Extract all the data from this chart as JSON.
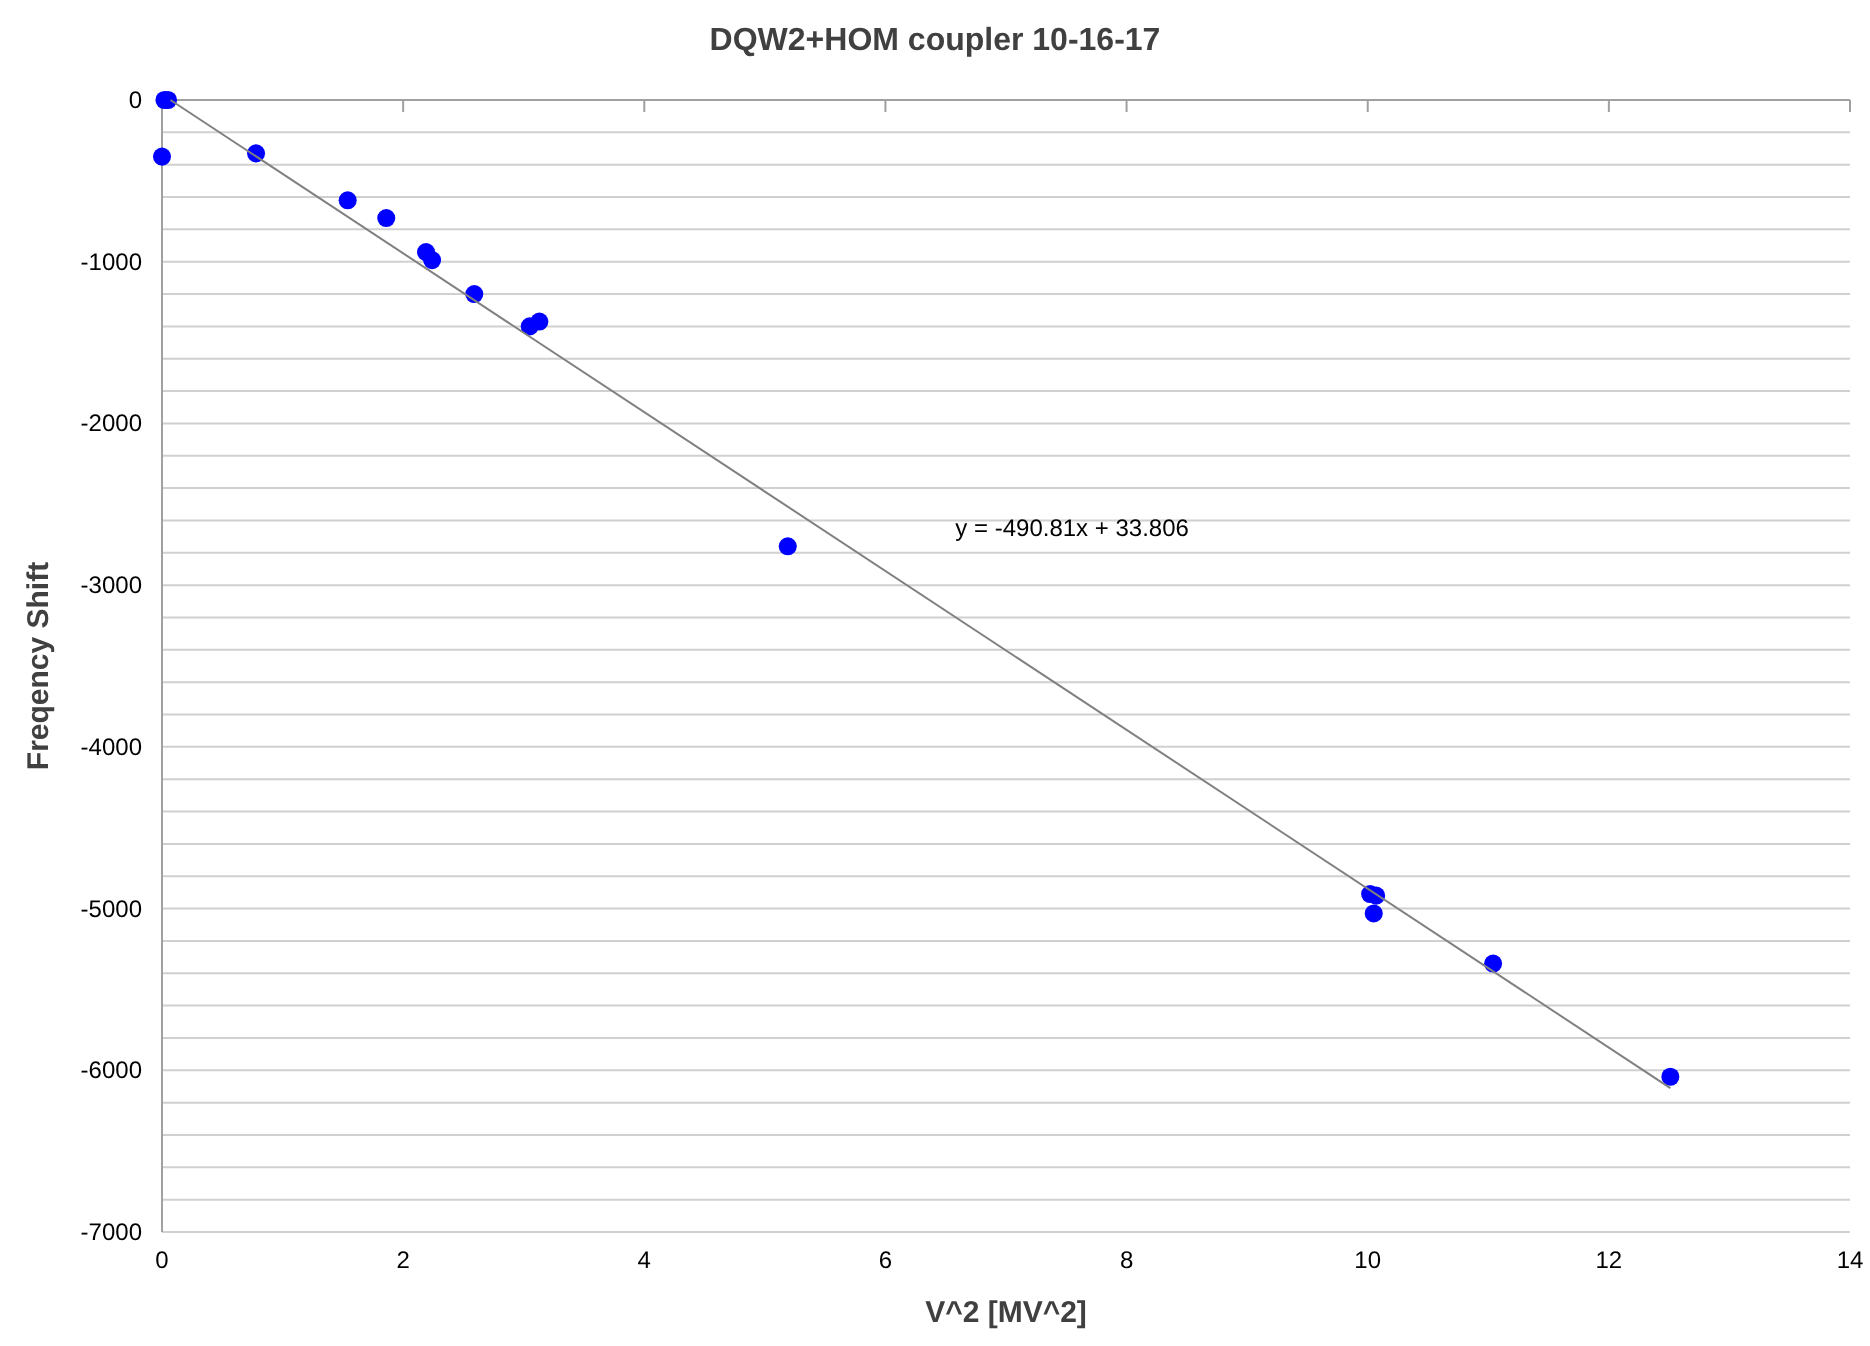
{
  "chart_data": {
    "type": "scatter",
    "title": "DQW2+HOM coupler 10-16-17",
    "xlabel": "V^2 [MV^2]",
    "ylabel": "Freqency Shift",
    "xlim": [
      0,
      14
    ],
    "xticks": [
      0,
      2,
      4,
      6,
      8,
      10,
      12,
      14
    ],
    "ylim": [
      -7000,
      0
    ],
    "yticks": [
      -7000,
      {
        "value": -6800,
        "label": null
      },
      {
        "value": -6600,
        "label": null
      },
      {
        "value": -6400,
        "label": null
      },
      {
        "value": -6200,
        "label": null
      },
      -6000,
      {
        "value": -5800,
        "label": null
      },
      {
        "value": -5600,
        "label": null
      },
      {
        "value": -5400,
        "label": null
      },
      {
        "value": -5200,
        "label": null
      },
      -5000,
      {
        "value": -4800,
        "label": null
      },
      {
        "value": -4600,
        "label": null
      },
      {
        "value": -4400,
        "label": null
      },
      {
        "value": -4200,
        "label": null
      },
      -4000,
      {
        "value": -3800,
        "label": null
      },
      {
        "value": -3600,
        "label": null
      },
      {
        "value": -3400,
        "label": null
      },
      {
        "value": -3200,
        "label": null
      },
      -3000,
      {
        "value": -2800,
        "label": null
      },
      {
        "value": -2600,
        "label": null
      },
      {
        "value": -2400,
        "label": null
      },
      {
        "value": -2200,
        "label": null
      },
      -2000,
      {
        "value": -1800,
        "label": null
      },
      {
        "value": -1600,
        "label": null
      },
      {
        "value": -1400,
        "label": null
      },
      {
        "value": -1200,
        "label": null
      },
      -1000,
      {
        "value": -800,
        "label": null
      },
      {
        "value": -600,
        "label": null
      },
      {
        "value": -400,
        "label": null
      },
      {
        "value": -200,
        "label": null
      },
      0
    ],
    "grid": "y",
    "series": [
      {
        "marker": "circle",
        "color": "#0000ff",
        "x": [
          0.02,
          0.05,
          0,
          0.78,
          1.54,
          1.86,
          2.19,
          2.24,
          2.59,
          3.05,
          3.13,
          5.19,
          10.02,
          10.07,
          10.05,
          11.04,
          12.51
        ],
        "values": [
          0,
          0,
          -350,
          -330,
          -620,
          -730,
          -940,
          -990,
          -1200,
          -1400,
          -1370,
          -2760,
          -4910,
          -4920,
          -5030,
          -5340,
          -6040
        ]
      },
      {
        "type": "line",
        "color": "#808080",
        "x": [
          0.07,
          12.51
        ],
        "values": [
          0,
          -6110
        ]
      }
    ],
    "annotations": [
      "y = -490.81x + 33.806"
    ]
  }
}
